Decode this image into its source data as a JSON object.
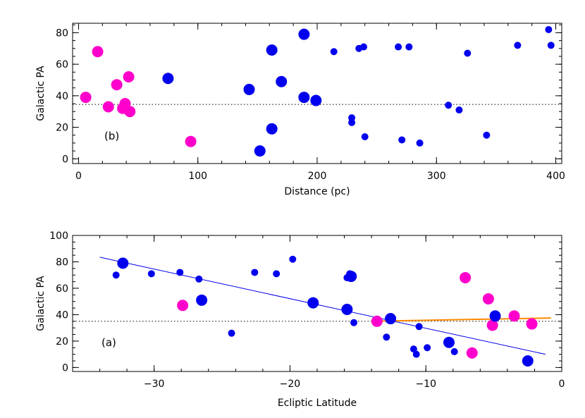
{
  "chart_data": [
    {
      "type": "scatter",
      "panel_label": "(b)",
      "xlabel": "Distance (pc)",
      "ylabel": "Galactic PA",
      "xlim": [
        -5,
        405
      ],
      "ylim": [
        -3,
        86
      ],
      "xticks": [
        0,
        100,
        200,
        300,
        400
      ],
      "xtick_labels": [
        "0",
        "100",
        "200",
        "300",
        "400"
      ],
      "yticks": [
        0,
        20,
        40,
        60,
        80
      ],
      "ytick_labels": [
        "0",
        "20",
        "40",
        "60",
        "80"
      ],
      "x_minor_step": 20,
      "y_minor_step": 5,
      "reference_line_y": 34.5,
      "grid": false,
      "colors": {
        "blue": "#0000ee",
        "magenta": "#ff00cc"
      },
      "points": [
        {
          "x": 6,
          "y": 39,
          "color": "magenta",
          "size": "large"
        },
        {
          "x": 16,
          "y": 68,
          "color": "magenta",
          "size": "large"
        },
        {
          "x": 25,
          "y": 33,
          "color": "magenta",
          "size": "large"
        },
        {
          "x": 32,
          "y": 47,
          "color": "magenta",
          "size": "large"
        },
        {
          "x": 37,
          "y": 32,
          "color": "magenta",
          "size": "large"
        },
        {
          "x": 39,
          "y": 35,
          "color": "magenta",
          "size": "large"
        },
        {
          "x": 42,
          "y": 52,
          "color": "magenta",
          "size": "large"
        },
        {
          "x": 43,
          "y": 30,
          "color": "magenta",
          "size": "large"
        },
        {
          "x": 94,
          "y": 11,
          "color": "magenta",
          "size": "large"
        },
        {
          "x": 75,
          "y": 51,
          "color": "blue",
          "size": "large"
        },
        {
          "x": 143,
          "y": 44,
          "color": "blue",
          "size": "large"
        },
        {
          "x": 152,
          "y": 5,
          "color": "blue",
          "size": "large"
        },
        {
          "x": 162,
          "y": 69,
          "color": "blue",
          "size": "large"
        },
        {
          "x": 162,
          "y": 19,
          "color": "blue",
          "size": "large"
        },
        {
          "x": 170,
          "y": 49,
          "color": "blue",
          "size": "large"
        },
        {
          "x": 189,
          "y": 79,
          "color": "blue",
          "size": "large"
        },
        {
          "x": 189,
          "y": 39,
          "color": "blue",
          "size": "large"
        },
        {
          "x": 199,
          "y": 37,
          "color": "blue",
          "size": "large"
        },
        {
          "x": 214,
          "y": 68,
          "color": "blue",
          "size": "small"
        },
        {
          "x": 229,
          "y": 26,
          "color": "blue",
          "size": "small"
        },
        {
          "x": 229,
          "y": 23,
          "color": "blue",
          "size": "small"
        },
        {
          "x": 235,
          "y": 70,
          "color": "blue",
          "size": "small"
        },
        {
          "x": 239,
          "y": 71,
          "color": "blue",
          "size": "small"
        },
        {
          "x": 240,
          "y": 14,
          "color": "blue",
          "size": "small"
        },
        {
          "x": 268,
          "y": 71,
          "color": "blue",
          "size": "small"
        },
        {
          "x": 271,
          "y": 12,
          "color": "blue",
          "size": "small"
        },
        {
          "x": 277,
          "y": 71,
          "color": "blue",
          "size": "small"
        },
        {
          "x": 286,
          "y": 10,
          "color": "blue",
          "size": "small"
        },
        {
          "x": 310,
          "y": 34,
          "color": "blue",
          "size": "small"
        },
        {
          "x": 319,
          "y": 31,
          "color": "blue",
          "size": "small"
        },
        {
          "x": 326,
          "y": 67,
          "color": "blue",
          "size": "small"
        },
        {
          "x": 342,
          "y": 15,
          "color": "blue",
          "size": "small"
        },
        {
          "x": 368,
          "y": 72,
          "color": "blue",
          "size": "small"
        },
        {
          "x": 394,
          "y": 82,
          "color": "blue",
          "size": "small"
        },
        {
          "x": 396,
          "y": 72,
          "color": "blue",
          "size": "small"
        }
      ]
    },
    {
      "type": "scatter",
      "panel_label": "(a)",
      "xlabel": "Ecliptic Latitude",
      "ylabel": "Galactic PA",
      "xlim": [
        -36,
        0
      ],
      "ylim": [
        -3,
        100
      ],
      "xticks": [
        -30,
        -20,
        -10,
        0
      ],
      "xtick_labels": [
        "−30",
        "−20",
        "−10",
        "0"
      ],
      "yticks": [
        0,
        20,
        40,
        60,
        80,
        100
      ],
      "ytick_labels": [
        "0",
        "20",
        "40",
        "60",
        "80",
        "100"
      ],
      "x_minor_step": 2,
      "y_minor_step": 5,
      "reference_line_y": 35,
      "grid": false,
      "colors": {
        "blue": "#0000ee",
        "magenta": "#ff00cc",
        "fit_blue": "#0000ee",
        "fit_orange": "#ff8800"
      },
      "fit_lines": [
        {
          "color": "fit_blue",
          "x1": -34,
          "y1": 83.5,
          "x2": -1.2,
          "y2": 10
        },
        {
          "color": "fit_orange",
          "x1": -14,
          "y1": 35,
          "x2": -0.8,
          "y2": 37.5
        }
      ],
      "points": [
        {
          "x": -32.3,
          "y": 79,
          "color": "blue",
          "size": "large"
        },
        {
          "x": -32.8,
          "y": 70,
          "color": "blue",
          "size": "small"
        },
        {
          "x": -30.2,
          "y": 71,
          "color": "blue",
          "size": "small"
        },
        {
          "x": -28.1,
          "y": 72,
          "color": "blue",
          "size": "small"
        },
        {
          "x": -27.9,
          "y": 47,
          "color": "magenta",
          "size": "large"
        },
        {
          "x": -26.7,
          "y": 67,
          "color": "blue",
          "size": "small"
        },
        {
          "x": -26.5,
          "y": 51,
          "color": "blue",
          "size": "large"
        },
        {
          "x": -24.3,
          "y": 26,
          "color": "blue",
          "size": "small"
        },
        {
          "x": -22.6,
          "y": 72,
          "color": "blue",
          "size": "small"
        },
        {
          "x": -21.0,
          "y": 71,
          "color": "blue",
          "size": "small"
        },
        {
          "x": -19.8,
          "y": 82,
          "color": "blue",
          "size": "small"
        },
        {
          "x": -18.3,
          "y": 49,
          "color": "blue",
          "size": "large"
        },
        {
          "x": -15.8,
          "y": 68,
          "color": "blue",
          "size": "small"
        },
        {
          "x": -15.6,
          "y": 71,
          "color": "blue",
          "size": "small"
        },
        {
          "x": -15.5,
          "y": 69,
          "color": "blue",
          "size": "large"
        },
        {
          "x": -15.8,
          "y": 44,
          "color": "blue",
          "size": "large"
        },
        {
          "x": -15.3,
          "y": 34,
          "color": "blue",
          "size": "small"
        },
        {
          "x": -13.6,
          "y": 35,
          "color": "magenta",
          "size": "large"
        },
        {
          "x": -12.9,
          "y": 23,
          "color": "blue",
          "size": "small"
        },
        {
          "x": -12.6,
          "y": 37,
          "color": "blue",
          "size": "large"
        },
        {
          "x": -10.9,
          "y": 14,
          "color": "blue",
          "size": "small"
        },
        {
          "x": -10.7,
          "y": 10,
          "color": "blue",
          "size": "small"
        },
        {
          "x": -10.5,
          "y": 31,
          "color": "blue",
          "size": "small"
        },
        {
          "x": -9.9,
          "y": 15,
          "color": "blue",
          "size": "small"
        },
        {
          "x": -8.3,
          "y": 19,
          "color": "blue",
          "size": "large"
        },
        {
          "x": -7.9,
          "y": 12,
          "color": "blue",
          "size": "small"
        },
        {
          "x": -7.1,
          "y": 68,
          "color": "magenta",
          "size": "large"
        },
        {
          "x": -6.6,
          "y": 11,
          "color": "magenta",
          "size": "large"
        },
        {
          "x": -5.4,
          "y": 52,
          "color": "magenta",
          "size": "large"
        },
        {
          "x": -5.1,
          "y": 32,
          "color": "magenta",
          "size": "large"
        },
        {
          "x": -4.9,
          "y": 39,
          "color": "blue",
          "size": "large"
        },
        {
          "x": -3.5,
          "y": 39,
          "color": "magenta",
          "size": "large"
        },
        {
          "x": -2.5,
          "y": 5,
          "color": "blue",
          "size": "large"
        },
        {
          "x": -2.2,
          "y": 33,
          "color": "magenta",
          "size": "large"
        }
      ]
    }
  ]
}
